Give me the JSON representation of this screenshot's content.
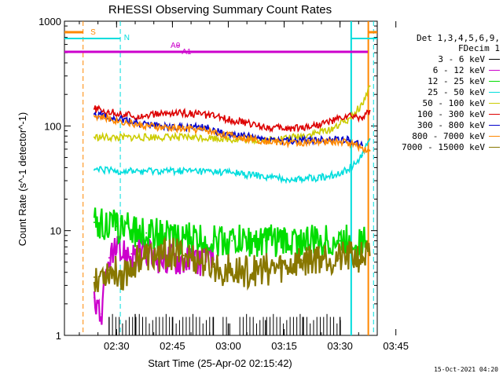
{
  "chart_data": {
    "type": "line",
    "title": "RHESSI Observing Summary Count Rates",
    "xlabel": "Start Time (25-Apr-02 02:15:42)",
    "ylabel": "Count Rate (s^-1 detector^-1)",
    "yscale": "log",
    "ylim": [
      1,
      1000
    ],
    "xlim_minutes": [
      16,
      100
    ],
    "x_ticks": [
      {
        "label": "02:30",
        "t": 30
      },
      {
        "label": "02:45",
        "t": 45
      },
      {
        "label": "03:00",
        "t": 60
      },
      {
        "label": "03:15",
        "t": 75
      },
      {
        "label": "03:30",
        "t": 90
      },
      {
        "label": "03:45",
        "t": 105
      }
    ],
    "y_ticks": [
      {
        "label": "1",
        "v": 1
      },
      {
        "label": "10",
        "v": 10
      },
      {
        "label": "100",
        "v": 100
      },
      {
        "label": "1000",
        "v": 1000
      }
    ],
    "legend_header": [
      "Det 1,3,4,5,6,9,",
      "FDecim 1"
    ],
    "series": [
      {
        "name": "3 - 6 keV",
        "color": "#000000",
        "t": [
          28,
          35,
          45,
          56,
          60,
          70,
          80,
          90
        ],
        "values": [
          1.5,
          1.6,
          1.5,
          1.5,
          1.3,
          1.4,
          1.5,
          1.5
        ]
      },
      {
        "name": "6 - 12 keV",
        "color": "#cc00cc",
        "t": [
          24,
          26,
          28,
          30,
          34,
          40,
          48,
          56
        ],
        "values": [
          2.3,
          1.6,
          5.5,
          6.2,
          6.0,
          5.6,
          5.4,
          5.2
        ]
      },
      {
        "name": "12 - 25 keV",
        "color": "#00dd00",
        "t": [
          24,
          30,
          38,
          46,
          56,
          61,
          70,
          80,
          90,
          97
        ],
        "values": [
          12.0,
          11.0,
          9.5,
          8.5,
          8.0,
          8.0,
          8.0,
          8.0,
          8.0,
          8.0
        ]
      },
      {
        "name": "25 - 50 keV",
        "color": "#00dddd",
        "t": [
          24,
          30,
          40,
          50,
          60,
          66,
          72,
          78,
          84,
          88,
          92,
          96,
          98
        ],
        "values": [
          38,
          37,
          37,
          37,
          36,
          34,
          32,
          31,
          32,
          34,
          38,
          52,
          75
        ]
      },
      {
        "name": "50 - 100 keV",
        "color": "#cccc00",
        "t": [
          24,
          30,
          40,
          50,
          58,
          62,
          66,
          72,
          78,
          84,
          88,
          92,
          96,
          98
        ],
        "values": [
          78,
          77,
          78,
          78,
          76,
          74,
          73,
          74,
          78,
          86,
          95,
          115,
          160,
          240
        ]
      },
      {
        "name": "100 - 300 keV",
        "color": "#dd0000",
        "t": [
          24,
          28,
          32,
          36,
          40,
          44,
          48,
          52,
          56,
          60,
          64,
          68,
          72,
          76,
          80,
          84,
          88,
          92,
          96,
          98
        ],
        "values": [
          145,
          136,
          128,
          124,
          128,
          132,
          133,
          130,
          124,
          116,
          108,
          101,
          96,
          95,
          97,
          103,
          112,
          124,
          120,
          140
        ]
      },
      {
        "name": "300 - 800 keV",
        "color": "#0000cc",
        "t": [
          24,
          30,
          36,
          42,
          48,
          54,
          58,
          64,
          70,
          76,
          82,
          88,
          92,
          96
        ],
        "values": [
          130,
          118,
          105,
          100,
          98,
          96,
          86,
          80,
          75,
          72,
          73,
          75,
          74,
          65
        ]
      },
      {
        "name": "800 - 7000 keV",
        "color": "#ff8800",
        "t": [
          24,
          30,
          36,
          42,
          48,
          54,
          58,
          64,
          70,
          76,
          82,
          88,
          92,
          96,
          98
        ],
        "values": [
          125,
          113,
          102,
          96,
          94,
          91,
          84,
          77,
          72,
          69,
          69,
          71,
          70,
          62,
          58
        ]
      },
      {
        "name": "7000 - 15000 keV",
        "color": "#887700",
        "t": [
          24,
          28,
          32,
          36,
          40,
          44,
          48,
          52,
          56,
          62,
          68,
          74,
          80,
          86,
          90,
          94,
          98
        ],
        "values": [
          3.6,
          4.2,
          3.8,
          5.6,
          5.6,
          6.0,
          5.8,
          5.2,
          4.5,
          4.0,
          4.2,
          4.4,
          5.2,
          5.8,
          5.4,
          5.6,
          5.8
        ]
      }
    ],
    "annotations": [
      {
        "text": "S",
        "color": "#ff8800"
      },
      {
        "text": "N",
        "color": "#00dddd"
      },
      {
        "text": "A0",
        "color": "#cc00cc"
      },
      {
        "text": "A1",
        "color": "#cc00cc"
      }
    ],
    "footer_stamp": "15-Oct-2021 04:20"
  }
}
